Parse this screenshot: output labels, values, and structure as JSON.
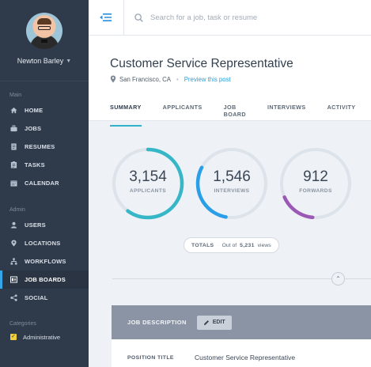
{
  "user": {
    "name": "Newton Barley"
  },
  "sidebar": {
    "main_label": "Main",
    "main_items": [
      {
        "label": "HOME",
        "icon": "home-icon"
      },
      {
        "label": "JOBS",
        "icon": "jobs-icon"
      },
      {
        "label": "RESUMES",
        "icon": "resumes-icon"
      },
      {
        "label": "TASKS",
        "icon": "tasks-icon"
      },
      {
        "label": "CALENDAR",
        "icon": "calendar-icon"
      }
    ],
    "admin_label": "Admin",
    "admin_items": [
      {
        "label": "USERS",
        "icon": "users-icon"
      },
      {
        "label": "LOCATIONS",
        "icon": "location-icon"
      },
      {
        "label": "WORKFLOWS",
        "icon": "workflows-icon"
      },
      {
        "label": "JOB BOARDS",
        "icon": "job-boards-icon",
        "active": true
      },
      {
        "label": "SOCIAL",
        "icon": "social-icon"
      }
    ],
    "categories_label": "Categories",
    "categories": [
      {
        "label": "Administrative",
        "color": "#f1cf3c"
      }
    ]
  },
  "search": {
    "placeholder": "Search for a job, task or resume"
  },
  "job": {
    "title": "Customer Service Representative",
    "location": "San Francisco, CA",
    "preview_link": "Preview this post"
  },
  "tabs": [
    "SUMMARY",
    "APPLICANTS",
    "JOB BOARD",
    "INTERVIEWS",
    "ACTIVITY"
  ],
  "active_tab": "SUMMARY",
  "stats": [
    {
      "value": "3,154",
      "label": "APPLICANTS",
      "color": "#35b7c8",
      "fraction": 0.6
    },
    {
      "value": "1,546",
      "label": "INTERVIEWS",
      "color": "#2a9ee6",
      "fraction": 0.3
    },
    {
      "value": "912",
      "label": "FORWARDS",
      "color": "#9b59b6",
      "fraction": 0.17
    }
  ],
  "totals": {
    "label": "TOTALS",
    "text_prefix": "Out of",
    "value": "5,231",
    "text_suffix": "views"
  },
  "job_description": {
    "title": "JOB DESCRIPTION",
    "edit_label": "EDIT",
    "fields": [
      {
        "label": "POSITION TITLE",
        "value": "Customer Service Representative"
      }
    ]
  },
  "colors": {
    "sidebar_bg": "#2f3a4a",
    "accent": "#35a7e8",
    "tab_underline": "#30b3c9",
    "ring_track": "#dde3ea"
  }
}
